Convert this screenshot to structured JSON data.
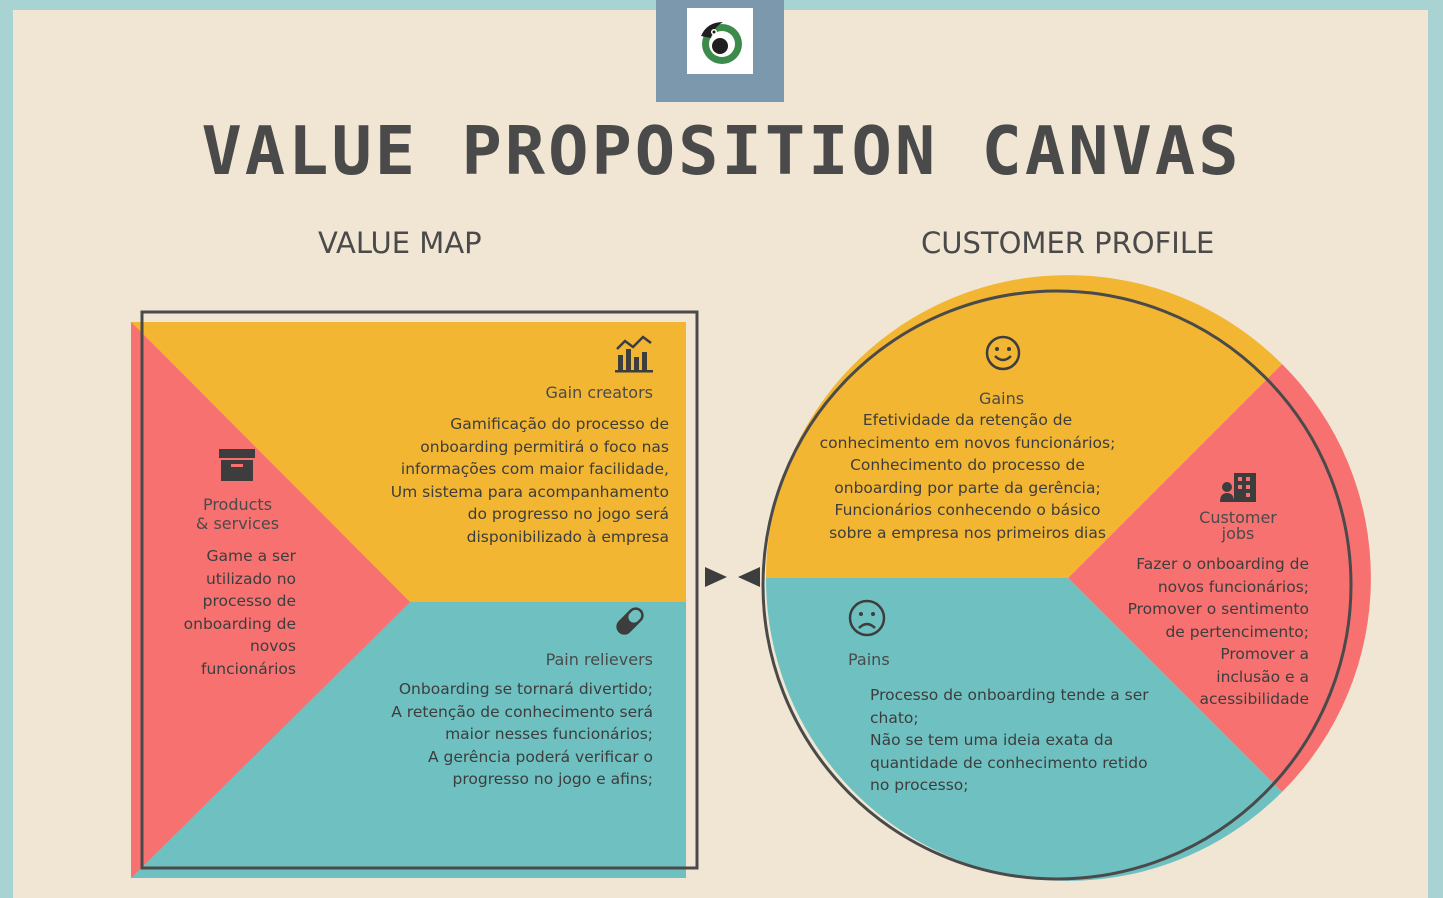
{
  "title": "VALUE PROPOSITION CANVAS",
  "value_map": {
    "heading": "VALUE MAP",
    "products": {
      "label": "Products\n& services",
      "icon": "archive-box-icon",
      "text": "Game a ser\nutilizado no\nprocesso de\nonboarding de\nnovos\nfuncionários"
    },
    "gain_creators": {
      "label": "Gain creators",
      "icon": "bar-chart-trend-icon",
      "text": "Gamificação do processo de\nonboarding permitirá o foco nas\ninformações com maior facilidade,\nUm sistema para acompanhamento\ndo progresso no jogo será\ndisponibilizado à empresa"
    },
    "pain_relievers": {
      "label": "Pain relievers",
      "icon": "pill-icon",
      "text": "Onboarding se tornará divertido;\nA retenção de conhecimento será\nmaior nesses funcionários;\nA gerência poderá verificar o\nprogresso no jogo e afins;"
    }
  },
  "customer_profile": {
    "heading": "CUSTOMER PROFILE",
    "gains": {
      "label": "Gains",
      "icon": "smiley-face-icon",
      "text": "Efetividade da retenção de\nconhecimento em novos funcionários;\nConhecimento do processo de\nonboarding por parte da gerência;\nFuncionários conhecendo o básico\nsobre a empresa nos primeiros dias"
    },
    "customer_jobs": {
      "label": "Customer\njobs",
      "icon": "building-person-icon",
      "text": "Fazer o onboarding de\nnovos funcionários;\nPromover o sentimento\nde pertencimento;\nPromover a\ninclusão e a\nacessibilidade"
    },
    "pains": {
      "label": "Pains",
      "icon": "sad-face-icon",
      "text": "Processo de onboarding tende a ser\nchato;\nNão se tem uma ideia exata da\nquantidade de conhecimento retido\nno processo;"
    }
  },
  "colors": {
    "yellow": "#f2b632",
    "red": "#f67170",
    "teal": "#6fc0c1",
    "background": "#f1e6d4",
    "border": "#a9d3d2",
    "logo_box": "#7b98ad",
    "ink": "#4a4a4a"
  }
}
